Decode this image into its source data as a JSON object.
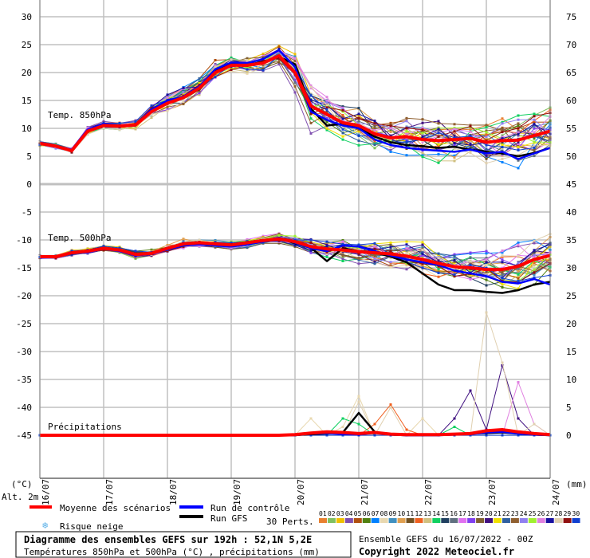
{
  "chart_data": {
    "type": "line",
    "title": "Diagramme des ensembles GEFS sur 192h : 52,1N 5,2E",
    "subtitle": "Températures 850hPa et 500hPa (°C) , précipitations (mm)",
    "run_info": "Ensemble GEFS du 16/07/2022 - 00Z",
    "copyright": "Copyright 2022 Meteociel.fr",
    "left_axis": {
      "unit_label": "(°C)",
      "extra_label": "Alt. 2m",
      "ticks": [
        "30",
        "25",
        "20",
        "15",
        "10",
        "5",
        "0",
        "-5",
        "-10",
        "-15",
        "-20",
        "-25",
        "-30",
        "-35",
        "-40",
        "-45"
      ],
      "ylim": [
        -52.7,
        30
      ]
    },
    "right_axis": {
      "unit_label": "(mm)",
      "ticks": [
        "75",
        "70",
        "65",
        "60",
        "55",
        "50",
        "45",
        "40",
        "35",
        "30",
        "25",
        "20",
        "15",
        "10",
        "5",
        "0"
      ],
      "ylim": [
        -7.7,
        75
      ]
    },
    "x_labels": [
      "16/07",
      "17/07",
      "18/07",
      "19/07",
      "20/07",
      "21/07",
      "22/07",
      "23/07",
      "24/07"
    ],
    "x_step_hours": 6,
    "panel_labels": {
      "t850": "Temp. 850hPa",
      "t500": "Temp. 500hPa",
      "precip": "Précipitations"
    },
    "series": {
      "mean": {
        "name": "Moyenne des scénarios",
        "color": "#ff0000",
        "t850": [
          7.3,
          6.8,
          6.0,
          9.5,
          10.5,
          10.4,
          10.6,
          13,
          14.5,
          15.5,
          17.2,
          20,
          21.3,
          21.3,
          21.7,
          23,
          20,
          14,
          12.5,
          11,
          10.5,
          9,
          8.3,
          8.5,
          8.0,
          7.8,
          8,
          8.2,
          7.5,
          7.8,
          7.9,
          8.7,
          9.5
        ],
        "t500": [
          -13,
          -13,
          -12.3,
          -12,
          -11.5,
          -11.8,
          -12.6,
          -12.4,
          -11.5,
          -10.7,
          -10.5,
          -10.7,
          -10.9,
          -10.5,
          -10.1,
          -9.8,
          -10.3,
          -11.2,
          -11.6,
          -11.8,
          -12.1,
          -12.3,
          -12.5,
          -12.9,
          -13.5,
          -14.2,
          -14.8,
          -15,
          -15.3,
          -15.3,
          -14.7,
          -13.5,
          -12.8
        ],
        "precip": [
          0,
          0,
          0,
          0,
          0,
          0,
          0,
          0,
          0,
          0,
          0,
          0,
          0,
          0,
          0,
          0,
          0.1,
          0.4,
          0.6,
          0.5,
          0.3,
          0.5,
          0.2,
          0.1,
          0.1,
          0.1,
          0.2,
          0.3,
          0.8,
          1.0,
          0.6,
          0.3,
          0.1
        ]
      },
      "control": {
        "name": "Run de contrôle",
        "color": "#0000ff",
        "t850": [
          7.5,
          6.7,
          6.2,
          9.8,
          10.8,
          10.5,
          10.7,
          13.4,
          15,
          15.7,
          17.5,
          20.6,
          21.8,
          21.7,
          22.4,
          24,
          21,
          13,
          11.5,
          10.5,
          10,
          8,
          7,
          6.5,
          6.2,
          6.0,
          5.8,
          6.2,
          5.5,
          5.8,
          4.5,
          5.5,
          6.5
        ],
        "t500": [
          -13.2,
          -13.1,
          -12.4,
          -12.2,
          -11.6,
          -12,
          -12.8,
          -12.5,
          -11.7,
          -11,
          -10.8,
          -11,
          -11.2,
          -10.8,
          -10.3,
          -9.6,
          -10.5,
          -11.5,
          -12,
          -11,
          -11.2,
          -12,
          -12.8,
          -13.5,
          -14,
          -14.5,
          -15.5,
          -16,
          -16.5,
          -17.5,
          -17.8,
          -17,
          -18
        ],
        "precip": [
          0,
          0,
          0,
          0,
          0,
          0,
          0,
          0,
          0,
          0,
          0,
          0,
          0,
          0,
          0,
          0,
          0,
          0.3,
          0.4,
          0.2,
          0.1,
          0.5,
          0.1,
          0,
          0,
          0,
          0.1,
          0.2,
          0.5,
          0.6,
          0.3,
          0.1,
          0
        ]
      },
      "gfs": {
        "name": "Run GFS",
        "color": "#000000",
        "t850": [
          7.2,
          6.9,
          6.1,
          9.6,
          10.6,
          10.3,
          10.5,
          13.1,
          14.6,
          15.4,
          17,
          20.2,
          21.5,
          21.4,
          21.9,
          22.8,
          21.5,
          13.5,
          10.5,
          10.8,
          10,
          8.5,
          7.5,
          7,
          6.8,
          6.5,
          6.7,
          6.2,
          5.8,
          5.5,
          5.0,
          5.6,
          6.5
        ],
        "t500": [
          -13.1,
          -13,
          -12.2,
          -11.9,
          -11.4,
          -11.7,
          -12.5,
          -12.3,
          -11.4,
          -10.6,
          -10.4,
          -10.6,
          -10.8,
          -10.4,
          -10,
          -9.7,
          -10.6,
          -11.4,
          -13.8,
          -11.5,
          -12,
          -12.2,
          -13,
          -14,
          -16,
          -18,
          -19,
          -19,
          -19.3,
          -19.5,
          -19,
          -18,
          -17.5
        ],
        "precip": [
          0,
          0,
          0,
          0,
          0,
          0,
          0,
          0,
          0,
          0,
          0,
          0,
          0,
          0,
          0,
          0,
          0,
          0.2,
          0.3,
          0.5,
          4.0,
          0.6,
          0.1,
          0,
          0,
          0,
          0.2,
          0.3,
          0.4,
          0.5,
          0.3,
          0.1,
          0
        ]
      }
    },
    "members": {
      "label": "30 Perts.",
      "ids": [
        "01",
        "02",
        "03",
        "04",
        "05",
        "06",
        "07",
        "08",
        "09",
        "10",
        "11",
        "12",
        "13",
        "14",
        "15",
        "16",
        "17",
        "18",
        "19",
        "20",
        "21",
        "22",
        "23",
        "24",
        "25",
        "26",
        "27",
        "28",
        "29",
        "30"
      ],
      "colors": [
        "#e88030",
        "#80c060",
        "#f0c000",
        "#8050b0",
        "#b05010",
        "#508010",
        "#0080ff",
        "#e8d8b0",
        "#4090c0",
        "#e0a050",
        "#705020",
        "#f06020",
        "#d0c080",
        "#10d060",
        "#204060",
        "#607080",
        "#e070f0",
        "#8040f0",
        "#806030",
        "#401080",
        "#f0e000",
        "#3060a0",
        "#906030",
        "#9080f0",
        "#a0f030",
        "#e080e0",
        "#1810a0",
        "#e0d0b0",
        "#901010",
        "#1040d0"
      ],
      "t850_spread": [
        0.5,
        0.4,
        0.4,
        0.7,
        0.6,
        0.5,
        0.6,
        0.9,
        1.2,
        1.4,
        1.5,
        1.5,
        1.3,
        1.2,
        1.3,
        1.2,
        2.5,
        3,
        2.5,
        2.3,
        2.3,
        2.2,
        2.3,
        2.5,
        2.7,
        2.8,
        2.9,
        3,
        3.1,
        3.2,
        3.3,
        3.3,
        3.3
      ],
      "t500_spread": [
        0.3,
        0.3,
        0.4,
        0.4,
        0.4,
        0.4,
        0.5,
        0.5,
        0.6,
        0.7,
        0.6,
        0.6,
        0.6,
        0.6,
        0.6,
        0.7,
        0.8,
        1.2,
        1.5,
        1.5,
        1.5,
        1.7,
        1.8,
        2,
        2.2,
        2.3,
        2.4,
        2.5,
        2.6,
        2.8,
        3,
        3,
        3
      ],
      "precip_peaks": [
        {
          "member": 8,
          "values": {
            "17": 3,
            "19": 1.5,
            "20": 7,
            "24": 3
          }
        },
        {
          "member": 28,
          "values": {
            "20": 6,
            "22": 5,
            "28": 22,
            "29": 13,
            "31": 2
          }
        },
        {
          "member": 20,
          "values": {
            "26": 3,
            "27": 8,
            "28": 1,
            "29": 12.5,
            "30": 3
          }
        },
        {
          "member": 26,
          "values": {
            "30": 9.5,
            "31": 2
          }
        },
        {
          "member": 12,
          "values": {
            "21": 2,
            "22": 5.5,
            "23": 1
          }
        },
        {
          "member": 14,
          "values": {
            "19": 3,
            "20": 2,
            "26": 1.5
          }
        }
      ]
    }
  },
  "legend": {
    "mean": "Moyenne des scénarios",
    "control": "Run de contrôle",
    "gfs": "Run GFS",
    "snow": "Risque neige",
    "perts": "30 Perts."
  }
}
